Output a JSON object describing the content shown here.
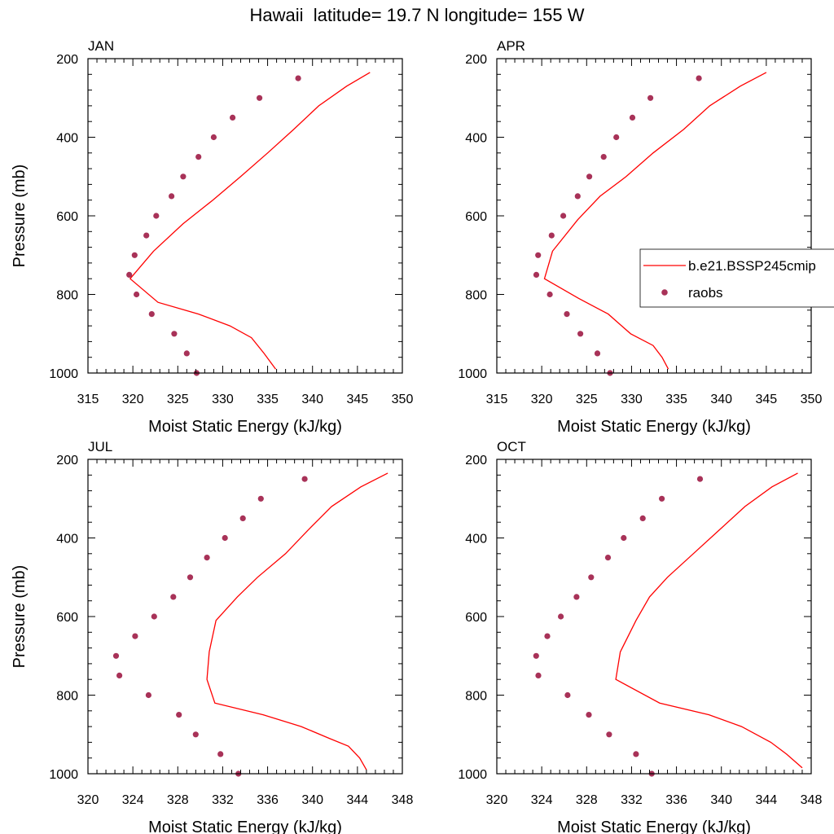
{
  "title": "Hawaii  latitude= 19.7 N longitude= 155 W",
  "colors": {
    "model_line": "#ff0000",
    "raobs_marker": "#a83258"
  },
  "chart_data": [
    {
      "type": "line",
      "panel": "JAN",
      "xlabel": "Moist Static Energy (kJ/kg)",
      "ylabel": "Pressure (mb)",
      "xlim": [
        315,
        350
      ],
      "x_ticks": [
        315,
        320,
        325,
        330,
        335,
        340,
        345,
        350
      ],
      "ylim": [
        1000,
        200
      ],
      "y_ticks": [
        200,
        400,
        600,
        800,
        1000
      ],
      "y_scale": "linear, inverted",
      "series": [
        {
          "name": "b.e21.BSSP245cmip",
          "style": "line",
          "x": [
            346.4,
            343.8,
            340.7,
            337.9,
            335.0,
            332.0,
            328.9,
            325.6,
            322.3,
            319.7,
            322.8,
            327.3,
            330.8,
            333.2,
            334.6,
            335.9
          ],
          "y": [
            235,
            270,
            320,
            380,
            440,
            500,
            560,
            620,
            690,
            760,
            820,
            850,
            880,
            910,
            950,
            990
          ]
        },
        {
          "name": "raobs",
          "style": "markers",
          "x": [
            338.4,
            334.1,
            331.1,
            329.0,
            327.3,
            325.6,
            324.3,
            322.6,
            321.5,
            320.2,
            319.6,
            320.4,
            322.1,
            324.6,
            326.0,
            327.1
          ],
          "y": [
            250,
            300,
            350,
            400,
            450,
            500,
            550,
            600,
            650,
            700,
            750,
            800,
            850,
            900,
            950,
            1000
          ]
        }
      ]
    },
    {
      "type": "line",
      "panel": "APR",
      "xlabel": "Moist Static Energy (kJ/kg)",
      "ylabel": "",
      "xlim": [
        315,
        350
      ],
      "x_ticks": [
        315,
        320,
        325,
        330,
        335,
        340,
        345,
        350
      ],
      "ylim": [
        1000,
        200
      ],
      "y_ticks": [
        200,
        400,
        600,
        800,
        1000
      ],
      "y_scale": "linear, inverted",
      "series": [
        {
          "name": "b.e21.BSSP245cmip",
          "style": "line",
          "x": [
            345.0,
            342.1,
            338.7,
            335.8,
            332.4,
            329.4,
            326.5,
            324.0,
            321.2,
            320.3,
            324.1,
            327.4,
            329.9,
            332.4,
            333.4,
            334.1
          ],
          "y": [
            235,
            270,
            320,
            380,
            440,
            500,
            550,
            610,
            690,
            760,
            810,
            850,
            900,
            930,
            960,
            990
          ]
        },
        {
          "name": "raobs",
          "style": "markers",
          "x": [
            337.5,
            332.1,
            330.1,
            328.3,
            326.9,
            325.3,
            324.0,
            322.4,
            321.1,
            319.6,
            319.4,
            320.9,
            322.8,
            324.3,
            326.2,
            327.6
          ],
          "y": [
            250,
            300,
            350,
            400,
            450,
            500,
            550,
            600,
            650,
            700,
            750,
            800,
            850,
            900,
            950,
            1000
          ]
        }
      ]
    },
    {
      "type": "line",
      "panel": "JUL",
      "xlabel": "Moist Static Energy (kJ/kg)",
      "ylabel": "Pressure (mb)",
      "xlim": [
        320,
        348
      ],
      "x_ticks": [
        320,
        324,
        328,
        332,
        336,
        340,
        344,
        348
      ],
      "ylim": [
        1000,
        200
      ],
      "y_ticks": [
        200,
        400,
        600,
        800,
        1000
      ],
      "y_scale": "linear, inverted",
      "series": [
        {
          "name": "b.e21.BSSP245cmip",
          "style": "line",
          "x": [
            346.7,
            344.3,
            341.7,
            339.6,
            337.6,
            335.1,
            333.3,
            331.4,
            330.8,
            330.6,
            331.3,
            335.6,
            339.0,
            341.5,
            343.2,
            344.2,
            344.8
          ],
          "y": [
            235,
            270,
            320,
            380,
            440,
            500,
            550,
            610,
            690,
            760,
            820,
            850,
            880,
            910,
            930,
            960,
            990
          ]
        },
        {
          "name": "raobs",
          "style": "markers",
          "x": [
            339.3,
            335.4,
            333.8,
            332.2,
            330.6,
            329.1,
            327.6,
            325.9,
            324.2,
            322.5,
            322.8,
            325.4,
            328.1,
            329.6,
            331.8,
            333.4
          ],
          "y": [
            250,
            300,
            350,
            400,
            450,
            500,
            550,
            600,
            650,
            700,
            750,
            800,
            850,
            900,
            950,
            1000
          ]
        }
      ]
    },
    {
      "type": "line",
      "panel": "OCT",
      "xlabel": "Moist Static Energy (kJ/kg)",
      "ylabel": "",
      "xlim": [
        320,
        348
      ],
      "x_ticks": [
        320,
        324,
        328,
        332,
        336,
        340,
        344,
        348
      ],
      "ylim": [
        1000,
        200
      ],
      "y_ticks": [
        200,
        400,
        600,
        800,
        1000
      ],
      "y_scale": "linear, inverted",
      "series": [
        {
          "name": "b.e21.BSSP245cmip",
          "style": "line",
          "x": [
            346.8,
            344.5,
            342.1,
            339.8,
            337.5,
            335.2,
            333.6,
            332.4,
            331.0,
            330.6,
            334.5,
            338.9,
            341.8,
            344.4,
            345.8,
            347.2
          ],
          "y": [
            235,
            270,
            320,
            380,
            440,
            500,
            550,
            610,
            690,
            760,
            820,
            850,
            880,
            920,
            950,
            985
          ]
        },
        {
          "name": "raobs",
          "style": "markers",
          "x": [
            338.1,
            334.7,
            333.0,
            331.3,
            329.9,
            328.4,
            327.1,
            325.7,
            324.5,
            323.5,
            323.7,
            326.3,
            328.2,
            330.0,
            332.4,
            333.8
          ],
          "y": [
            250,
            300,
            350,
            400,
            450,
            500,
            550,
            600,
            650,
            700,
            750,
            800,
            850,
            900,
            950,
            1000
          ]
        }
      ]
    }
  ],
  "legend": {
    "placement": "right edge of APR panel",
    "entries": [
      {
        "label": "b.e21.BSSP245cmip",
        "symbol": "line"
      },
      {
        "label": "raobs",
        "symbol": "marker"
      }
    ]
  }
}
